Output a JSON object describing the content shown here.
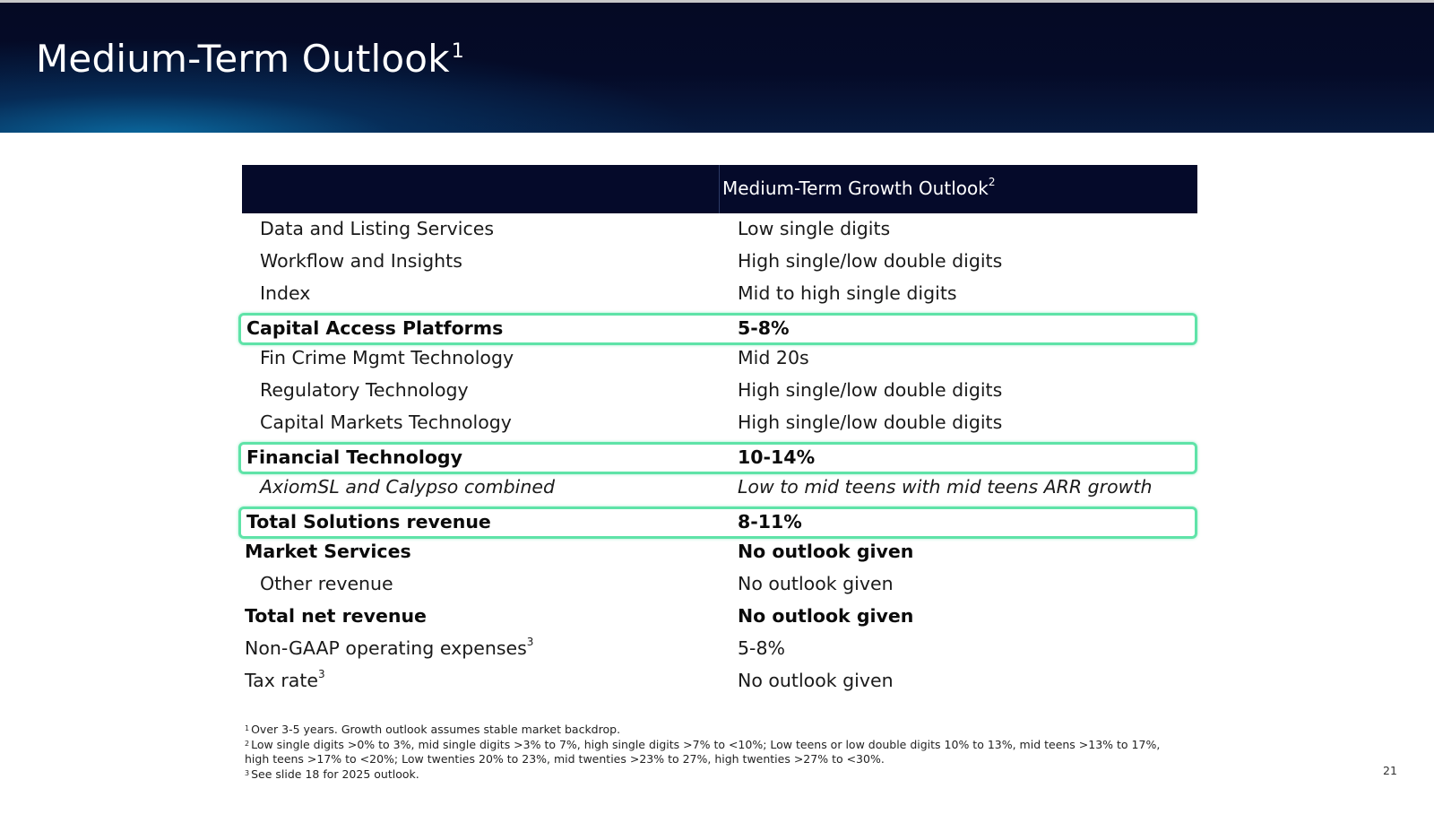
{
  "slide": {
    "title": "Medium-Term Outlook",
    "title_sup": "1",
    "page_number": "21"
  },
  "table": {
    "header_right": "Medium-Term Growth Outlook",
    "header_right_sup": "2",
    "rows": [
      {
        "label": "Data and Listing Services",
        "value": "Low single digits"
      },
      {
        "label": "Workflow and Insights",
        "value": "High single/low double digits"
      },
      {
        "label": "Index",
        "value": "Mid to high single digits"
      },
      {
        "label": "Capital Access Platforms",
        "value": "5-8%"
      },
      {
        "label": "Fin Crime Mgmt Technology",
        "value": "Mid 20s"
      },
      {
        "label": "Regulatory Technology",
        "value": "High single/low double digits"
      },
      {
        "label": "Capital Markets Technology",
        "value": "High single/low double digits"
      },
      {
        "label": "Financial Technology",
        "value": "10-14%"
      },
      {
        "label": "AxiomSL and Calypso combined",
        "value": "Low to mid teens with mid teens ARR growth"
      },
      {
        "label": "Total Solutions revenue",
        "value": "8-11%"
      },
      {
        "label": "Market Services",
        "value": "No outlook given"
      },
      {
        "label": "Other revenue",
        "value": "No outlook given"
      },
      {
        "label": "Total net revenue",
        "value": "No outlook given"
      },
      {
        "label": "Non-GAAP operating expenses",
        "label_sup": "3",
        "value": "5-8%"
      },
      {
        "label": "Tax rate",
        "label_sup": "3",
        "value": "No outlook given"
      }
    ]
  },
  "footnotes": {
    "n1_mark": "1",
    "n1": "Over 3-5 years. Growth outlook assumes stable market backdrop.",
    "n2_mark": "2",
    "n2_line1": "Low single digits >0% to 3%, mid single digits >3% to 7%, high single digits >7% to <10%; Low teens or low double digits 10% to 13%, mid teens >13% to 17%,",
    "n2_line2": "high teens >17% to <20%; Low twenties 20% to 23%, mid twenties >23% to 27%, high twenties >27% to <30%.",
    "n3_mark": "3",
    "n3": "See slide 18 for 2025 outlook."
  },
  "colors": {
    "header_bg": "#050a2a",
    "highlight_border": "#5fe3a8"
  }
}
